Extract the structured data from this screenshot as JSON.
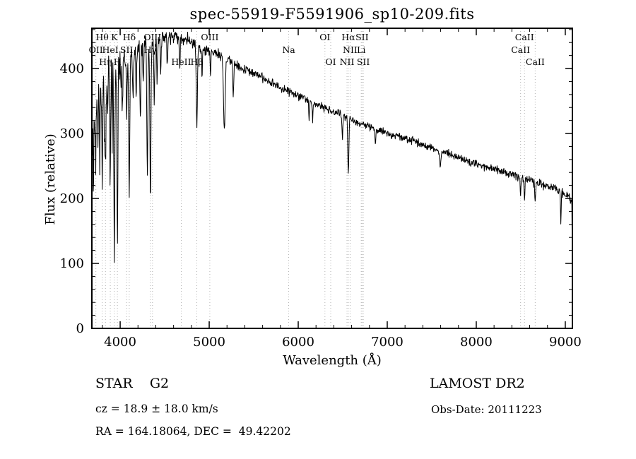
{
  "colors": {
    "background": "#ffffff",
    "spectrum_line": "#000000",
    "frame": "#000000",
    "marker_line": "#b3b3b3",
    "text": "#000000"
  },
  "annotations": {
    "classification": "STAR    G2",
    "survey": "LAMOST DR2",
    "cz": "cz = 18.9 ± 18.0 km/s",
    "obs_date": "Obs-Date: 20111223",
    "ra_dec": "RA = 164.18064, DEC =  49.42202"
  },
  "chart_data": {
    "type": "line",
    "title": "spec-55919-F5591906_sp10-209.fits",
    "xlabel": "Wavelength (Å)",
    "ylabel": "Flux (relative)",
    "xlim": [
      3682,
      9080
    ],
    "ylim": [
      0,
      462
    ],
    "xticks": [
      4000,
      5000,
      6000,
      7000,
      8000,
      9000
    ],
    "yticks": [
      0,
      100,
      200,
      300,
      400
    ],
    "x_minor_step": 200,
    "y_minor_step": 20,
    "grid": false,
    "legend": null,
    "continuum": [
      [
        3686,
        260
      ],
      [
        3700,
        300
      ],
      [
        3715,
        320
      ],
      [
        3730,
        335
      ],
      [
        3745,
        348
      ],
      [
        3760,
        358
      ],
      [
        3780,
        372
      ],
      [
        3800,
        385
      ],
      [
        3830,
        395
      ],
      [
        3860,
        400
      ],
      [
        3900,
        402
      ],
      [
        3940,
        399
      ],
      [
        3980,
        401
      ],
      [
        4020,
        408
      ],
      [
        4060,
        412
      ],
      [
        4100,
        416
      ],
      [
        4150,
        422
      ],
      [
        4200,
        428
      ],
      [
        4250,
        432
      ],
      [
        4300,
        436
      ],
      [
        4350,
        438
      ],
      [
        4400,
        441
      ],
      [
        4450,
        444
      ],
      [
        4500,
        446
      ],
      [
        4550,
        448
      ],
      [
        4600,
        449
      ],
      [
        4650,
        448
      ],
      [
        4700,
        446
      ],
      [
        4750,
        445
      ],
      [
        4800,
        442
      ],
      [
        4850,
        438
      ],
      [
        4900,
        433
      ],
      [
        4950,
        430
      ],
      [
        5000,
        427
      ],
      [
        5050,
        424
      ],
      [
        5100,
        421
      ],
      [
        5150,
        418
      ],
      [
        5200,
        413
      ],
      [
        5250,
        410
      ],
      [
        5300,
        406
      ],
      [
        5350,
        402
      ],
      [
        5400,
        399
      ],
      [
        5450,
        396
      ],
      [
        5500,
        393
      ],
      [
        5550,
        390
      ],
      [
        5600,
        386
      ],
      [
        5650,
        382
      ],
      [
        5700,
        379
      ],
      [
        5750,
        375
      ],
      [
        5800,
        372
      ],
      [
        5850,
        368
      ],
      [
        5900,
        364
      ],
      [
        5950,
        361
      ],
      [
        6000,
        358
      ],
      [
        6100,
        352
      ],
      [
        6200,
        346
      ],
      [
        6300,
        340
      ],
      [
        6400,
        334
      ],
      [
        6500,
        328
      ],
      [
        6600,
        322
      ],
      [
        6700,
        316
      ],
      [
        6800,
        311
      ],
      [
        6900,
        306
      ],
      [
        7000,
        301
      ],
      [
        7100,
        296
      ],
      [
        7200,
        292
      ],
      [
        7300,
        288
      ],
      [
        7400,
        283
      ],
      [
        7500,
        278
      ],
      [
        7600,
        273
      ],
      [
        7700,
        268
      ],
      [
        7800,
        263
      ],
      [
        7900,
        258
      ],
      [
        8000,
        253
      ],
      [
        8100,
        249
      ],
      [
        8200,
        245
      ],
      [
        8300,
        241
      ],
      [
        8400,
        237
      ],
      [
        8500,
        232
      ],
      [
        8600,
        228
      ],
      [
        8700,
        224
      ],
      [
        8800,
        220
      ],
      [
        8900,
        215
      ],
      [
        9000,
        207
      ],
      [
        9040,
        202
      ],
      [
        9078,
        198
      ]
    ],
    "absorption_lines": [
      [
        3700,
        80,
        4
      ],
      [
        3727,
        70,
        4
      ],
      [
        3750,
        90,
        4
      ],
      [
        3770,
        110,
        4
      ],
      [
        3798,
        150,
        5
      ],
      [
        3820,
        80,
        4
      ],
      [
        3835,
        160,
        5
      ],
      [
        3860,
        70,
        4
      ],
      [
        3889,
        190,
        5
      ],
      [
        3910,
        90,
        4
      ],
      [
        3934,
        300,
        5
      ],
      [
        3969,
        290,
        5
      ],
      [
        4026,
        60,
        4
      ],
      [
        4072,
        90,
        4
      ],
      [
        4102,
        210,
        6
      ],
      [
        4144,
        70,
        4
      ],
      [
        4180,
        80,
        4
      ],
      [
        4226,
        110,
        5
      ],
      [
        4260,
        60,
        4
      ],
      [
        4305,
        200,
        6
      ],
      [
        4340,
        225,
        6
      ],
      [
        4383,
        100,
        5
      ],
      [
        4415,
        60,
        4
      ],
      [
        4455,
        50,
        4
      ],
      [
        4530,
        45,
        4
      ],
      [
        4668,
        50,
        4
      ],
      [
        4861,
        130,
        6
      ],
      [
        4920,
        45,
        4
      ],
      [
        5015,
        40,
        4
      ],
      [
        5170,
        110,
        9
      ],
      [
        5270,
        55,
        5
      ],
      [
        6122,
        30,
        4
      ],
      [
        6162,
        30,
        4
      ],
      [
        6497,
        35,
        5
      ],
      [
        6563,
        85,
        6
      ],
      [
        6867,
        20,
        5
      ],
      [
        7594,
        25,
        8
      ],
      [
        8498,
        28,
        5
      ],
      [
        8542,
        34,
        5
      ],
      [
        8662,
        30,
        5
      ],
      [
        8950,
        45,
        4
      ]
    ],
    "noise_profile": [
      [
        3686,
        55
      ],
      [
        3750,
        50
      ],
      [
        3850,
        42
      ],
      [
        3950,
        34
      ],
      [
        4050,
        26
      ],
      [
        4200,
        18
      ],
      [
        4400,
        13
      ],
      [
        4700,
        10
      ],
      [
        5000,
        8
      ],
      [
        5500,
        7
      ],
      [
        6000,
        6
      ],
      [
        7000,
        6
      ],
      [
        8000,
        6
      ],
      [
        9080,
        7
      ]
    ],
    "end_drop": [
      [
        9074,
        190
      ],
      [
        9076,
        150
      ],
      [
        9078,
        110
      ]
    ],
    "spectral_line_markers": [
      {
        "label": "Hθ",
        "wavelength": 3798,
        "row": 0
      },
      {
        "label": "K",
        "wavelength": 3934,
        "row": 0
      },
      {
        "label": "Hδ",
        "wavelength": 4102,
        "row": 0
      },
      {
        "label": "OIII",
        "wavelength": 4363,
        "row": 0
      },
      {
        "label": "OIII",
        "wavelength": 5007,
        "row": 0
      },
      {
        "label": "OI",
        "wavelength": 6300,
        "row": 0
      },
      {
        "label": "Hα",
        "wavelength": 6563,
        "row": 0
      },
      {
        "label": "SII",
        "wavelength": 6717,
        "row": 0
      },
      {
        "label": "CaII",
        "wavelength": 8542,
        "row": 0
      },
      {
        "label": "OII",
        "wavelength": 3727,
        "row": 1
      },
      {
        "label": "HeI",
        "wavelength": 3889,
        "row": 1
      },
      {
        "label": "SII",
        "wavelength": 4072,
        "row": 1
      },
      {
        "label": "Hγ",
        "wavelength": 4340,
        "row": 1
      },
      {
        "label": "Na",
        "wavelength": 5893,
        "row": 1
      },
      {
        "label": "NII",
        "wavelength": 6583,
        "row": 1
      },
      {
        "label": "Li",
        "wavelength": 6708,
        "row": 1
      },
      {
        "label": "CaII",
        "wavelength": 8498,
        "row": 1
      },
      {
        "label": "Hη",
        "wavelength": 3835,
        "row": 2
      },
      {
        "label": "H",
        "wavelength": 3969,
        "row": 2
      },
      {
        "label": "HeII",
        "wavelength": 4686,
        "row": 2
      },
      {
        "label": "Hβ",
        "wavelength": 4861,
        "row": 2
      },
      {
        "label": "OI",
        "wavelength": 6365,
        "row": 2
      },
      {
        "label": "NII",
        "wavelength": 6548,
        "row": 2
      },
      {
        "label": "SII",
        "wavelength": 6731,
        "row": 2
      },
      {
        "label": "CaII",
        "wavelength": 8662,
        "row": 2
      }
    ]
  }
}
